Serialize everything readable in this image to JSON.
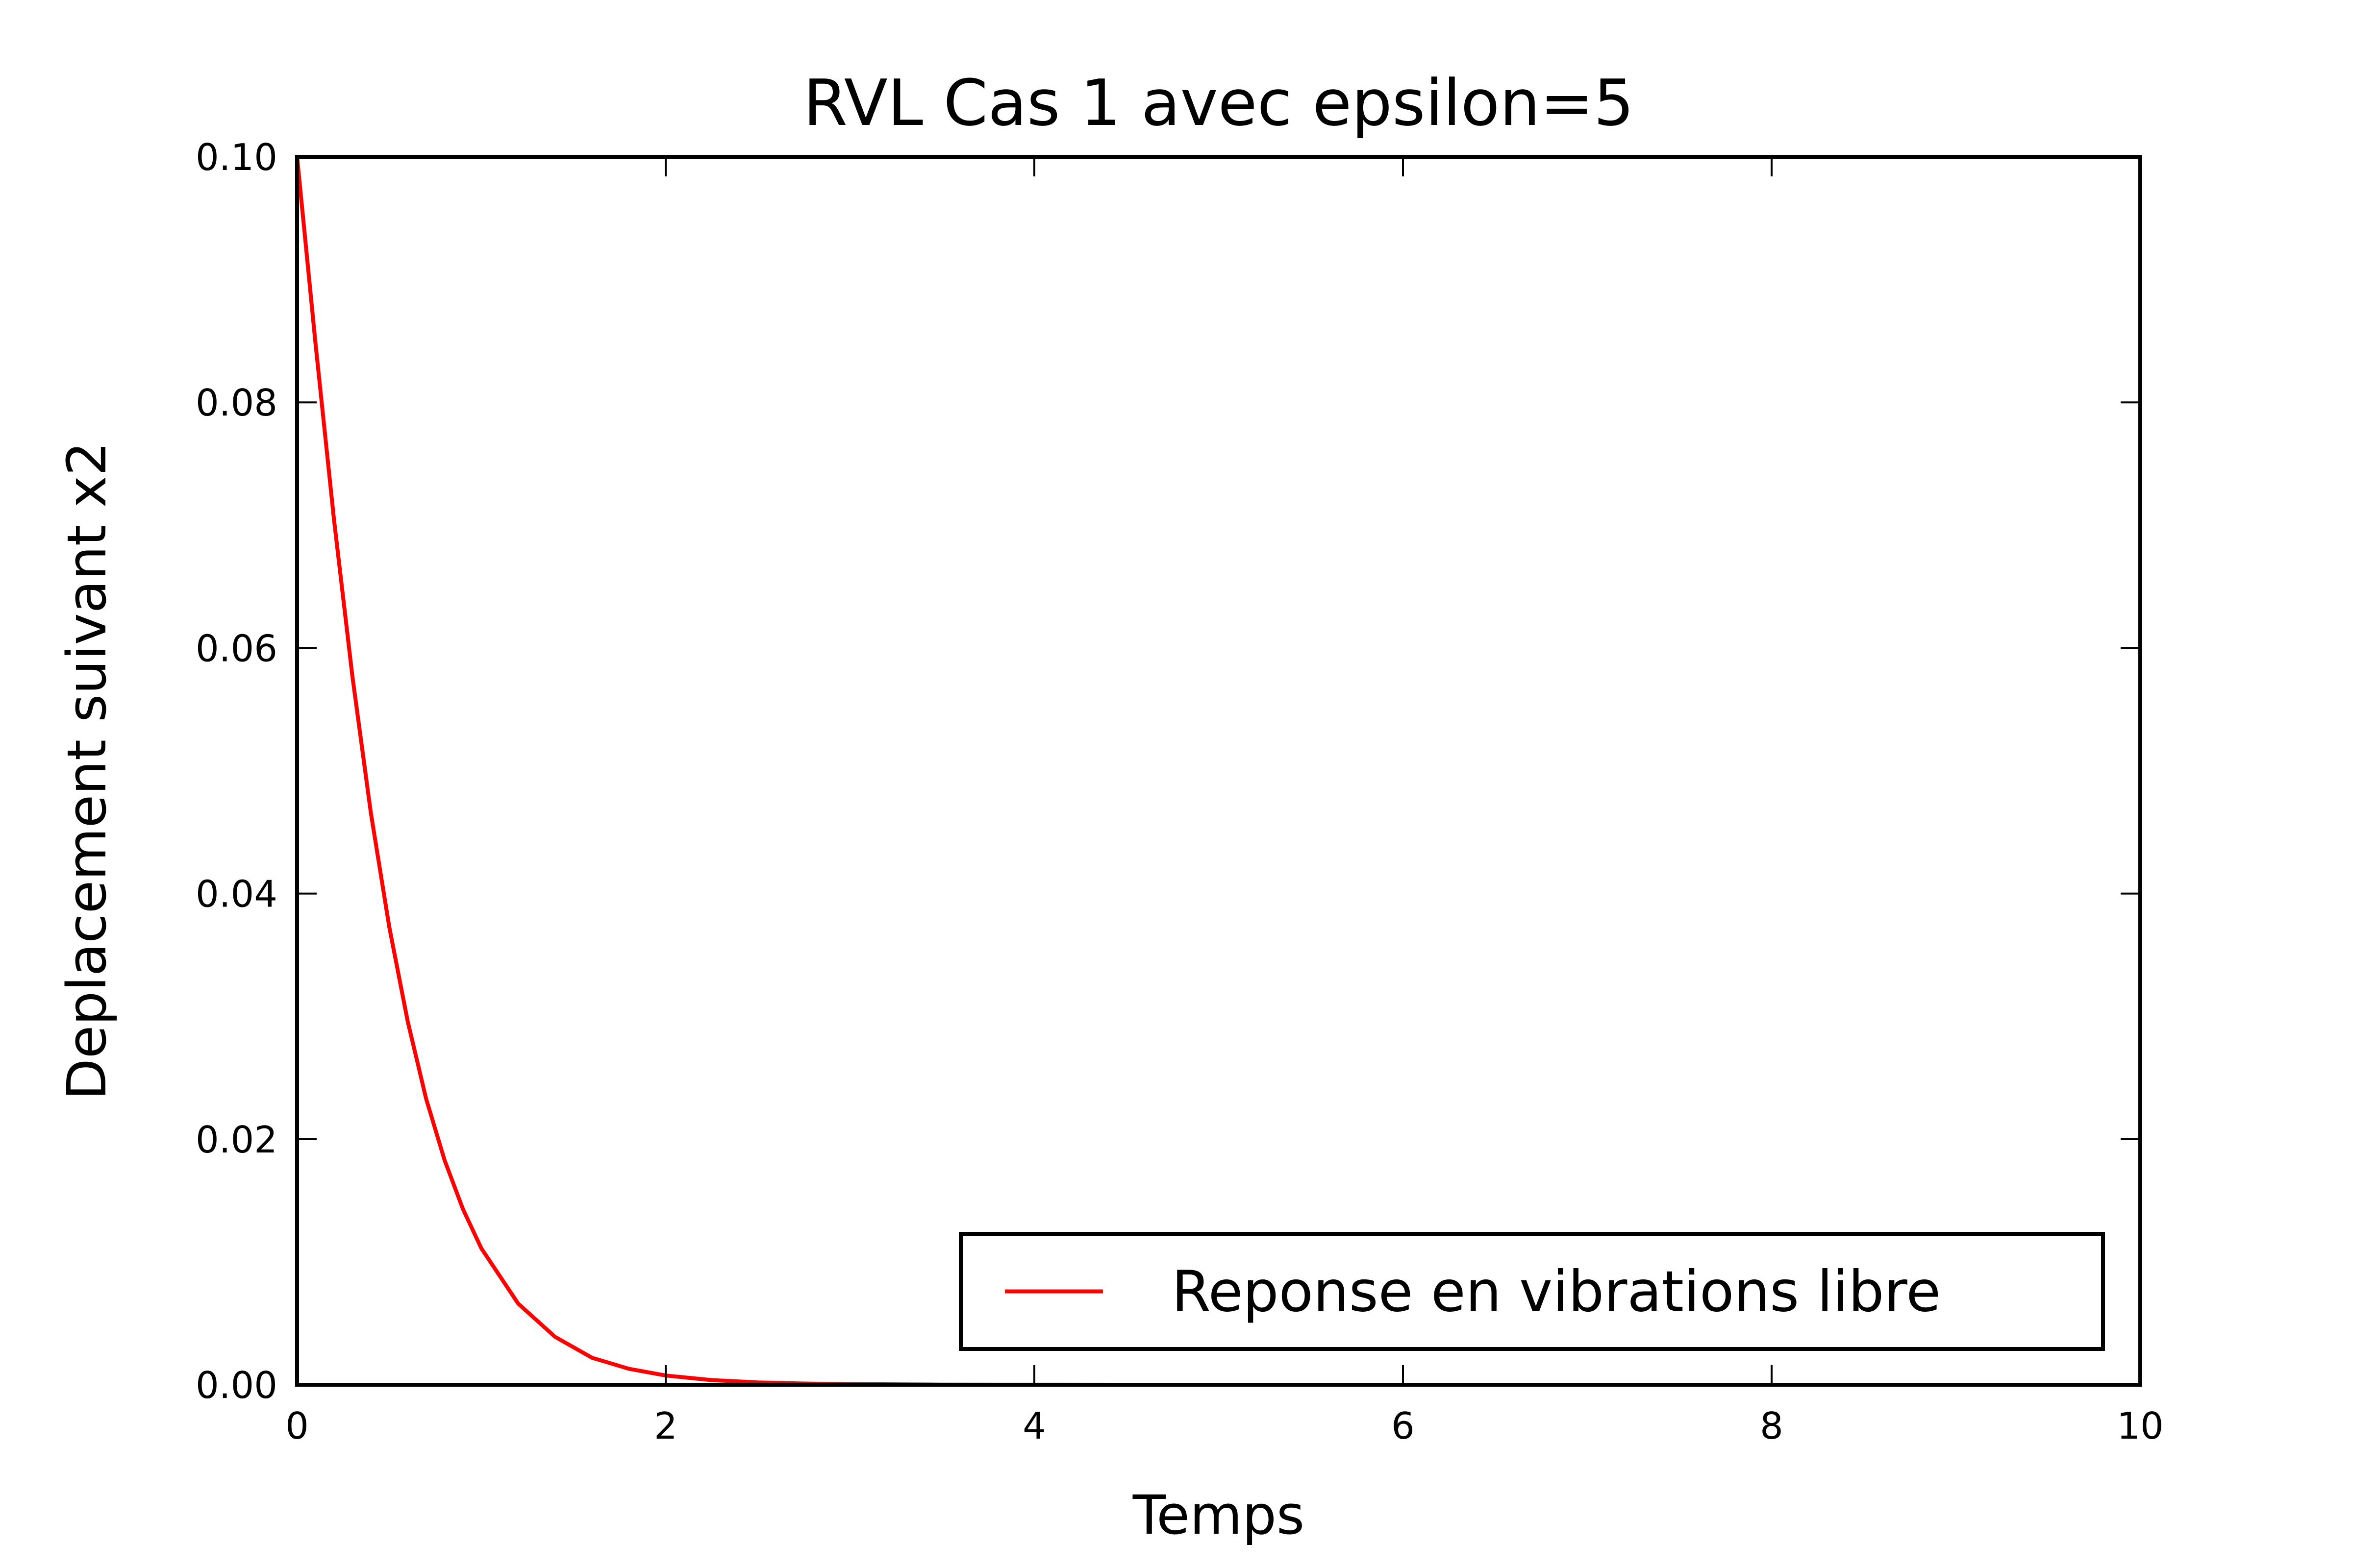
{
  "chart_data": {
    "type": "line",
    "title": "RVL Cas 1 avec epsilon=5",
    "xlabel": "Temps",
    "ylabel": "Deplacement suivant x2",
    "xlim": [
      0,
      10
    ],
    "ylim": [
      0,
      0.1
    ],
    "xticks": [
      "0",
      "2",
      "4",
      "6",
      "8",
      "10"
    ],
    "yticks": [
      "0.00",
      "0.02",
      "0.04",
      "0.06",
      "0.08",
      "0.10"
    ],
    "grid": false,
    "legend_position": "lower-right",
    "series": [
      {
        "name": "Reponse en vibrations libre",
        "color": "#ff0000",
        "x": [
          0,
          0.1,
          0.2,
          0.3,
          0.4,
          0.5,
          0.6,
          0.7,
          0.8,
          0.9,
          1.0,
          1.2,
          1.4,
          1.6,
          1.8,
          2.0,
          2.25,
          2.5,
          2.75,
          3.0,
          3.5,
          4.0,
          5.0,
          6.0,
          7.0,
          8.0,
          9.0,
          10.0
        ],
        "y": [
          0.1,
          0.0848,
          0.0705,
          0.0577,
          0.0466,
          0.0373,
          0.0296,
          0.0233,
          0.0183,
          0.0143,
          0.0111,
          0.0066,
          0.0039,
          0.0022,
          0.0013,
          0.00075,
          0.00038,
          0.00019,
          0.0001,
          5e-05,
          1.2e-05,
          3e-06,
          2e-07,
          0,
          0,
          0,
          0,
          0
        ]
      }
    ]
  }
}
